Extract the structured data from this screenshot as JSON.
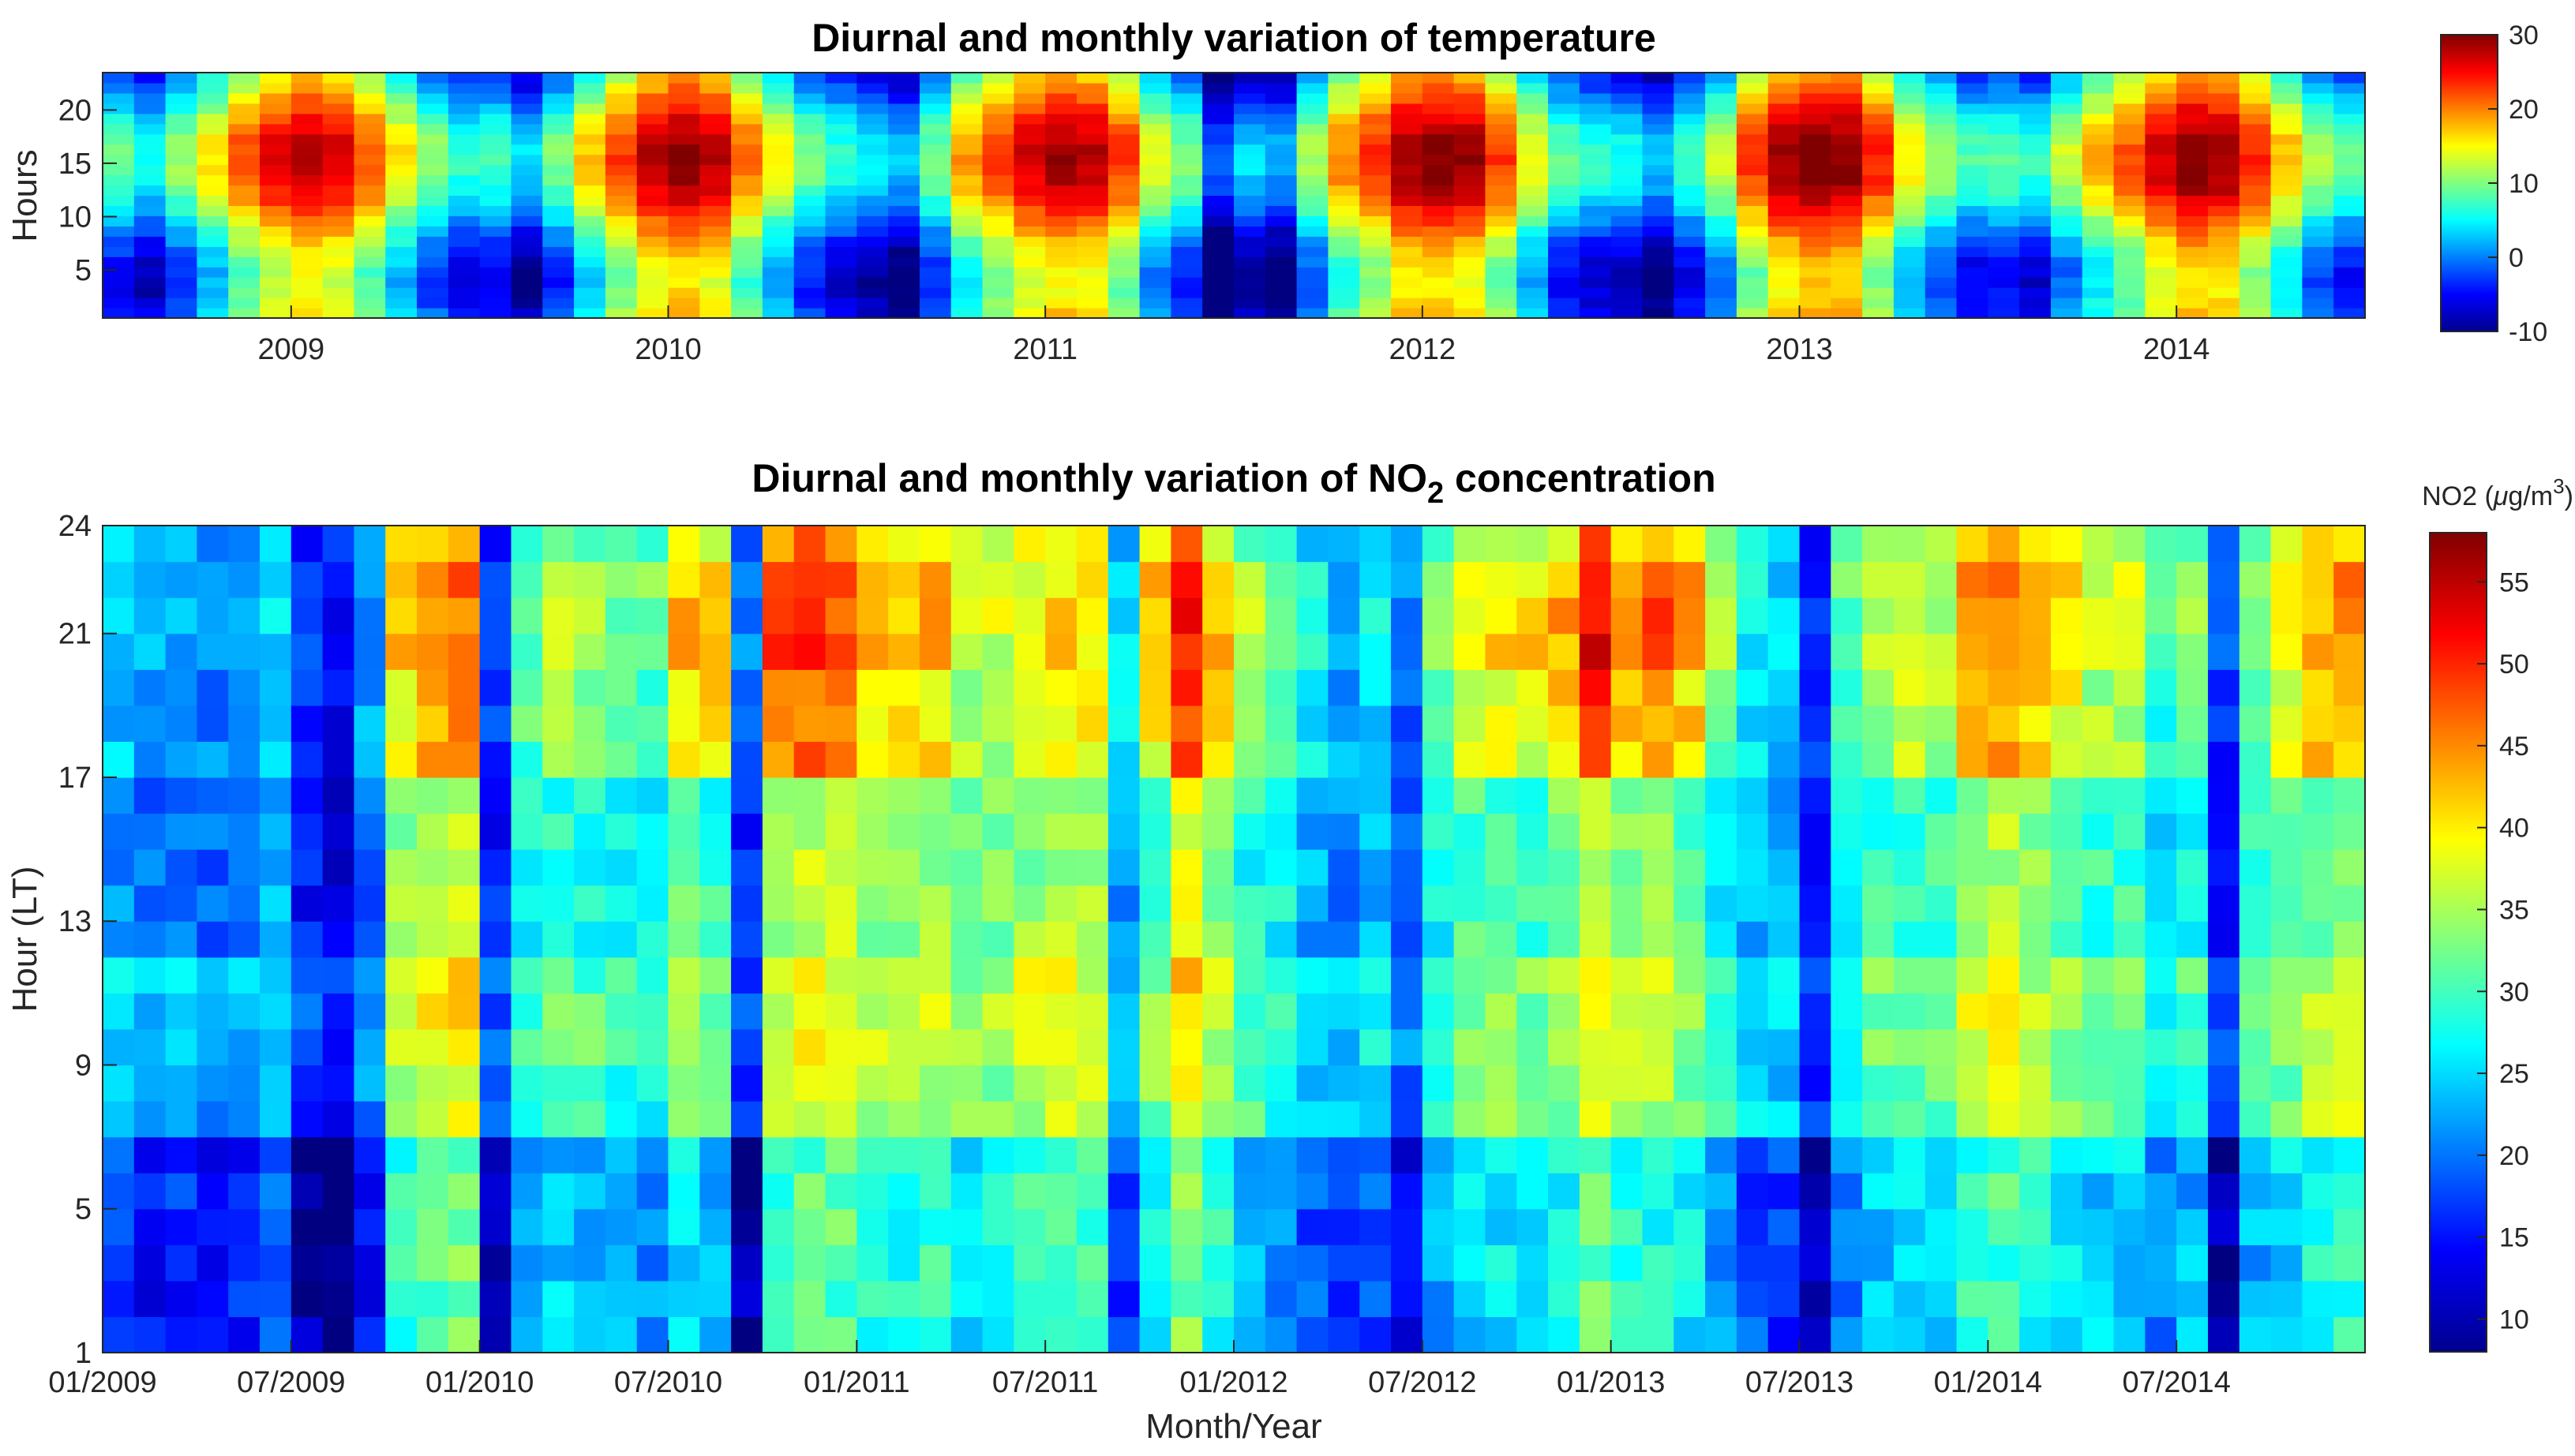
{
  "chart_data": [
    {
      "type": "heatmap",
      "title": "Diurnal and monthly variation of temperature",
      "xlabel": "",
      "ylabel": "Hours",
      "x_tick_labels": [
        "2009",
        "2010",
        "2011",
        "2012",
        "2013",
        "2014"
      ],
      "y_tick_labels": [
        "5",
        "10",
        "15",
        "20"
      ],
      "y_ticks": [
        5,
        10,
        15,
        20
      ],
      "ylim": [
        0.5,
        23.5
      ],
      "months": 72,
      "hours": 24,
      "colorbar": {
        "label": "",
        "range": [
          -10,
          30
        ],
        "ticks": [
          -10,
          0,
          10,
          20,
          30
        ],
        "tick_labels": [
          "-10",
          "0",
          "10",
          "20",
          "30"
        ]
      },
      "monthly_mean_c": [
        2,
        -1,
        4,
        9,
        15,
        19,
        21,
        20,
        15,
        9,
        4,
        0,
        1,
        -3,
        3,
        10,
        16,
        21,
        23,
        21,
        14,
        8,
        3,
        0,
        -2,
        -4,
        3,
        12,
        16,
        20,
        22,
        21,
        16,
        7,
        3,
        -8,
        -3,
        -5,
        5,
        13,
        17,
        22,
        23,
        22,
        16,
        8,
        2,
        0,
        -1,
        -4,
        1,
        6,
        16,
        22,
        24,
        23,
        17,
        9,
        5,
        1,
        2,
        0,
        6,
        11,
        15,
        20,
        23,
        22,
        17,
        11,
        5,
        2
      ],
      "diurnal_amplitude_c": 7,
      "peak_hour": 15
    },
    {
      "type": "heatmap",
      "title": "Diurnal and monthly variation of NO",
      "title_subscript": "2",
      "title_suffix": " concentration",
      "xlabel": "Month/Year",
      "ylabel": "Hour (LT)",
      "x_tick_labels": [
        "01/2009",
        "07/2009",
        "01/2010",
        "07/2010",
        "01/2011",
        "07/2011",
        "01/2012",
        "07/2012",
        "01/2013",
        "07/2013",
        "01/2014",
        "07/2014"
      ],
      "y_tick_labels": [
        "1",
        "5",
        "9",
        "13",
        "17",
        "21",
        "24"
      ],
      "y_ticks": [
        1,
        5,
        9,
        13,
        17,
        21,
        24
      ],
      "ylim": [
        1,
        24
      ],
      "months": 72,
      "hours": 23,
      "colorbar": {
        "label_prefix": "NO2 (",
        "label_mu": "μ",
        "label_unit": "g/m",
        "label_exp": "3",
        "label_suffix": ")",
        "range": [
          8,
          58
        ],
        "ticks": [
          10,
          15,
          20,
          25,
          30,
          35,
          40,
          45,
          50,
          55
        ],
        "tick_labels": [
          "10",
          "15",
          "20",
          "25",
          "30",
          "35",
          "40",
          "45",
          "50",
          "55"
        ]
      },
      "monthly_base_ugm3": [
        22,
        20,
        21,
        19,
        21,
        23,
        15,
        13,
        19,
        34,
        36,
        37,
        15,
        27,
        29,
        28,
        27,
        26,
        31,
        29,
        15,
        34,
        36,
        36,
        33,
        33,
        34,
        31,
        32,
        34,
        35,
        34,
        22,
        31,
        38,
        33,
        28,
        27,
        23,
        21,
        23,
        18,
        27,
        30,
        31,
        30,
        32,
        37,
        33,
        33,
        31,
        27,
        23,
        22,
        15,
        26,
        29,
        30,
        29,
        34,
        35,
        33,
        31,
        29,
        30,
        25,
        28,
        15,
        28,
        30,
        33,
        34
      ],
      "evening_boost_ugm3": [
        2,
        2,
        2,
        2,
        2,
        2,
        2,
        2,
        3,
        6,
        7,
        8,
        2,
        4,
        5,
        5,
        5,
        5,
        10,
        12,
        4,
        12,
        12,
        10,
        8,
        8,
        7,
        5,
        4,
        4,
        5,
        6,
        3,
        9,
        11,
        8,
        6,
        4,
        3,
        2,
        3,
        2,
        5,
        7,
        8,
        9,
        10,
        13,
        10,
        12,
        11,
        6,
        3,
        2,
        2,
        4,
        6,
        7,
        6,
        8,
        9,
        8,
        8,
        7,
        6,
        4,
        5,
        2,
        5,
        7,
        9,
        9
      ]
    }
  ]
}
